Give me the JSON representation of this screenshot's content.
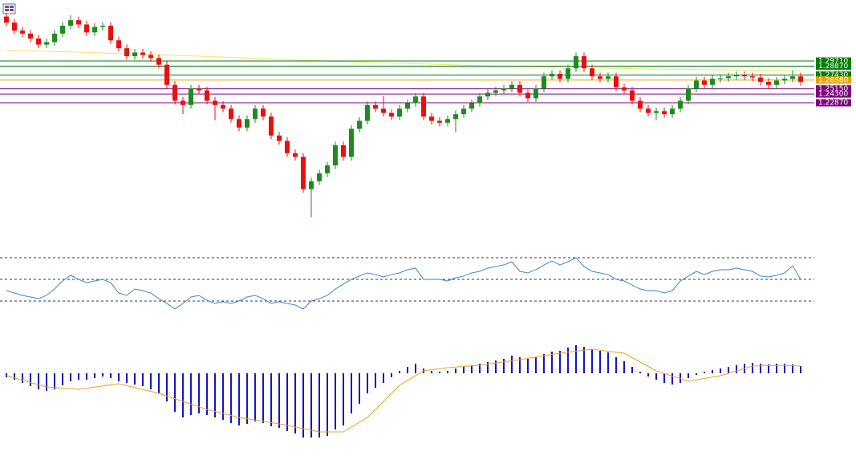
{
  "chart_data": [
    {
      "type": "candlestick",
      "ylim": [
        1.0,
        1.4
      ],
      "colors": {
        "up": "#1e8c1e",
        "down": "#e81010"
      },
      "ohlc": [
        [
          1.37,
          1.376,
          1.354,
          1.36
        ],
        [
          1.36,
          1.366,
          1.341,
          1.347
        ],
        [
          1.347,
          1.353,
          1.336,
          1.342
        ],
        [
          1.342,
          1.348,
          1.328,
          1.334
        ],
        [
          1.334,
          1.34,
          1.318,
          1.324
        ],
        [
          1.324,
          1.334,
          1.318,
          1.328
        ],
        [
          1.328,
          1.348,
          1.322,
          1.342
        ],
        [
          1.342,
          1.361,
          1.336,
          1.355
        ],
        [
          1.355,
          1.372,
          1.349,
          1.364
        ],
        [
          1.364,
          1.37,
          1.351,
          1.357
        ],
        [
          1.357,
          1.363,
          1.338,
          1.344
        ],
        [
          1.344,
          1.359,
          1.338,
          1.353
        ],
        [
          1.353,
          1.361,
          1.347,
          1.355
        ],
        [
          1.355,
          1.361,
          1.325,
          1.331
        ],
        [
          1.331,
          1.337,
          1.312,
          1.318
        ],
        [
          1.318,
          1.324,
          1.299,
          1.305
        ],
        [
          1.305,
          1.317,
          1.299,
          1.311
        ],
        [
          1.311,
          1.317,
          1.301,
          1.307
        ],
        [
          1.307,
          1.313,
          1.296,
          1.302
        ],
        [
          1.302,
          1.308,
          1.285,
          1.291
        ],
        [
          1.291,
          1.297,
          1.252,
          1.258
        ],
        [
          1.258,
          1.264,
          1.226,
          1.232
        ],
        [
          1.232,
          1.238,
          1.21,
          1.225
        ],
        [
          1.225,
          1.258,
          1.219,
          1.252
        ],
        [
          1.252,
          1.258,
          1.243,
          1.249
        ],
        [
          1.249,
          1.255,
          1.226,
          1.232
        ],
        [
          1.232,
          1.238,
          1.2,
          1.225
        ],
        [
          1.225,
          1.231,
          1.213,
          1.219
        ],
        [
          1.219,
          1.225,
          1.196,
          1.202
        ],
        [
          1.202,
          1.208,
          1.182,
          1.188
        ],
        [
          1.188,
          1.208,
          1.182,
          1.202
        ],
        [
          1.202,
          1.225,
          1.196,
          1.219
        ],
        [
          1.219,
          1.225,
          1.2,
          1.206
        ],
        [
          1.206,
          1.212,
          1.169,
          1.175
        ],
        [
          1.175,
          1.181,
          1.16,
          1.166
        ],
        [
          1.166,
          1.172,
          1.14,
          1.146
        ],
        [
          1.146,
          1.152,
          1.134,
          1.14
        ],
        [
          1.14,
          1.146,
          1.081,
          1.087
        ],
        [
          1.087,
          1.106,
          1.041,
          1.1
        ],
        [
          1.1,
          1.119,
          1.094,
          1.113
        ],
        [
          1.113,
          1.132,
          1.107,
          1.126
        ],
        [
          1.126,
          1.165,
          1.12,
          1.159
        ],
        [
          1.159,
          1.165,
          1.134,
          1.14
        ],
        [
          1.14,
          1.192,
          1.134,
          1.186
        ],
        [
          1.186,
          1.205,
          1.18,
          1.199
        ],
        [
          1.199,
          1.231,
          1.193,
          1.225
        ],
        [
          1.225,
          1.231,
          1.213,
          1.219
        ],
        [
          1.219,
          1.24,
          1.206,
          1.212
        ],
        [
          1.212,
          1.218,
          1.2,
          1.206
        ],
        [
          1.206,
          1.225,
          1.2,
          1.219
        ],
        [
          1.219,
          1.234,
          1.213,
          1.228
        ],
        [
          1.228,
          1.245,
          1.222,
          1.239
        ],
        [
          1.239,
          1.245,
          1.2,
          1.206
        ],
        [
          1.206,
          1.212,
          1.193,
          1.199
        ],
        [
          1.199,
          1.205,
          1.19,
          1.196
        ],
        [
          1.196,
          1.208,
          1.19,
          1.202
        ],
        [
          1.202,
          1.216,
          1.18,
          1.21
        ],
        [
          1.21,
          1.225,
          1.204,
          1.219
        ],
        [
          1.219,
          1.234,
          1.213,
          1.228
        ],
        [
          1.228,
          1.245,
          1.222,
          1.239
        ],
        [
          1.239,
          1.251,
          1.233,
          1.245
        ],
        [
          1.245,
          1.255,
          1.239,
          1.249
        ],
        [
          1.249,
          1.258,
          1.243,
          1.252
        ],
        [
          1.252,
          1.264,
          1.246,
          1.258
        ],
        [
          1.258,
          1.264,
          1.239,
          1.245
        ],
        [
          1.245,
          1.251,
          1.23,
          1.236
        ],
        [
          1.236,
          1.258,
          1.23,
          1.252
        ],
        [
          1.252,
          1.278,
          1.246,
          1.272
        ],
        [
          1.272,
          1.282,
          1.266,
          1.276
        ],
        [
          1.276,
          1.282,
          1.262,
          1.268
        ],
        [
          1.268,
          1.291,
          1.262,
          1.285
        ],
        [
          1.285,
          1.311,
          1.279,
          1.305
        ],
        [
          1.305,
          1.311,
          1.279,
          1.285
        ],
        [
          1.285,
          1.291,
          1.266,
          1.272
        ],
        [
          1.272,
          1.278,
          1.262,
          1.268
        ],
        [
          1.268,
          1.278,
          1.262,
          1.272
        ],
        [
          1.272,
          1.278,
          1.248,
          1.254
        ],
        [
          1.254,
          1.26,
          1.243,
          1.249
        ],
        [
          1.249,
          1.255,
          1.226,
          1.232
        ],
        [
          1.232,
          1.238,
          1.213,
          1.219
        ],
        [
          1.219,
          1.225,
          1.206,
          1.212
        ],
        [
          1.212,
          1.221,
          1.2,
          1.215
        ],
        [
          1.215,
          1.221,
          1.204,
          1.21
        ],
        [
          1.21,
          1.225,
          1.204,
          1.219
        ],
        [
          1.219,
          1.238,
          1.213,
          1.232
        ],
        [
          1.232,
          1.258,
          1.226,
          1.252
        ],
        [
          1.252,
          1.271,
          1.246,
          1.265
        ],
        [
          1.265,
          1.271,
          1.252,
          1.258
        ],
        [
          1.258,
          1.274,
          1.252,
          1.268
        ],
        [
          1.268,
          1.275,
          1.262,
          1.269
        ],
        [
          1.269,
          1.278,
          1.263,
          1.272
        ],
        [
          1.272,
          1.28,
          1.266,
          1.274
        ],
        [
          1.274,
          1.28,
          1.266,
          1.272
        ],
        [
          1.272,
          1.278,
          1.264,
          1.27
        ],
        [
          1.27,
          1.276,
          1.257,
          1.263
        ],
        [
          1.263,
          1.269,
          1.252,
          1.258
        ],
        [
          1.258,
          1.271,
          1.252,
          1.265
        ],
        [
          1.265,
          1.274,
          1.259,
          1.268
        ],
        [
          1.268,
          1.282,
          1.262,
          1.272
        ],
        [
          1.272,
          1.278,
          1.257,
          1.263
        ]
      ],
      "ma": {
        "color": "#f2e46a",
        "x": [
          0,
          20,
          40,
          60,
          80,
          99
        ],
        "values": [
          1.315,
          1.307,
          1.297,
          1.289,
          1.284,
          1.281
        ]
      },
      "levels": [
        {
          "value": 1.2971,
          "label": "1.29710",
          "color": "#008000"
        },
        {
          "value": 1.2887,
          "label": "1.28870",
          "color": "#008000"
        },
        {
          "value": 1.2743,
          "label": "1.27430",
          "color": "#008000"
        },
        {
          "value": 1.2658,
          "label": "1.26580",
          "color": "#f0a000"
        },
        {
          "value": 1.2515,
          "label": "1.25150",
          "color": "#800080"
        },
        {
          "value": 1.243,
          "label": "1.24300",
          "color": "#800080"
        },
        {
          "value": 1.2287,
          "label": "1.22870",
          "color": "#800080"
        }
      ]
    },
    {
      "type": "line",
      "color": "#3a86d0",
      "ylim": [
        0,
        100
      ],
      "levels": [
        30,
        50,
        70
      ],
      "values": [
        39.6,
        37.4,
        35.2,
        33.7,
        32.2,
        35.2,
        41.1,
        48.5,
        53.7,
        50,
        47,
        48.5,
        50,
        47,
        37.4,
        35.2,
        41.1,
        39.6,
        37.4,
        32.2,
        27.8,
        22.6,
        27.8,
        33.7,
        35.2,
        30.7,
        27.8,
        29.3,
        27.8,
        30,
        33.7,
        35.2,
        32.2,
        27.8,
        29.3,
        27.8,
        26.3,
        22.6,
        30,
        32.2,
        35.2,
        41.1,
        45.6,
        50,
        53,
        55.9,
        54.4,
        52.2,
        54.4,
        55.9,
        58.9,
        60.4,
        50,
        50,
        50,
        48.5,
        51.5,
        53,
        55.9,
        57.4,
        60.4,
        61.9,
        63.3,
        66.3,
        57.4,
        55.9,
        58.9,
        63.3,
        67,
        63.3,
        66.3,
        70,
        61.9,
        57.4,
        55.9,
        54.4,
        50,
        48.5,
        44.8,
        41.1,
        39.6,
        39.6,
        37.4,
        39.6,
        48.5,
        53,
        57.4,
        54.4,
        57.4,
        58.9,
        58.9,
        60.4,
        58.9,
        57.4,
        53,
        52.2,
        53.7,
        55.9,
        62.6,
        50
      ]
    },
    {
      "type": "macd",
      "color": "#1414c8",
      "ylim": [
        -0.1,
        0.05
      ],
      "values": [
        -0.005,
        -0.008,
        -0.012,
        -0.016,
        -0.02,
        -0.022,
        -0.02,
        -0.015,
        -0.01,
        -0.008,
        -0.008,
        -0.006,
        -0.004,
        -0.006,
        -0.01,
        -0.012,
        -0.014,
        -0.016,
        -0.02,
        -0.025,
        -0.035,
        -0.048,
        -0.055,
        -0.052,
        -0.05,
        -0.052,
        -0.055,
        -0.058,
        -0.062,
        -0.065,
        -0.063,
        -0.06,
        -0.062,
        -0.066,
        -0.068,
        -0.072,
        -0.075,
        -0.08,
        -0.08,
        -0.08,
        -0.078,
        -0.07,
        -0.065,
        -0.05,
        -0.038,
        -0.025,
        -0.018,
        -0.012,
        -0.005,
        0.003,
        0.008,
        0.012,
        0.006,
        0.003,
        0.002,
        0.003,
        0.006,
        0.008,
        0.01,
        0.012,
        0.014,
        0.016,
        0.018,
        0.022,
        0.02,
        0.018,
        0.02,
        0.024,
        0.027,
        0.028,
        0.032,
        0.035,
        0.033,
        0.03,
        0.028,
        0.026,
        0.02,
        0.015,
        0.008,
        0.002,
        -0.004,
        -0.008,
        -0.012,
        -0.014,
        -0.012,
        -0.006,
        -0.002,
        0.002,
        0.004,
        0.006,
        0.008,
        0.01,
        0.012,
        0.013,
        0.012,
        0.011,
        0.012,
        0.012,
        0.011,
        0.009
      ],
      "signal": {
        "color": "#f0a020",
        "x": [
          0,
          5,
          9,
          14,
          19,
          25,
          29,
          34,
          39,
          42,
          45,
          49,
          52,
          55,
          59,
          64,
          69,
          73,
          77,
          81,
          85,
          89,
          93,
          97,
          99
        ],
        "values": [
          -0.003,
          -0.017,
          -0.02,
          -0.013,
          -0.025,
          -0.045,
          -0.055,
          -0.063,
          -0.073,
          -0.073,
          -0.055,
          -0.015,
          0.003,
          0.007,
          0.01,
          0.017,
          0.025,
          0.03,
          0.025,
          0.003,
          -0.01,
          -0.003,
          0.009,
          0.01,
          0.009
        ]
      }
    }
  ]
}
